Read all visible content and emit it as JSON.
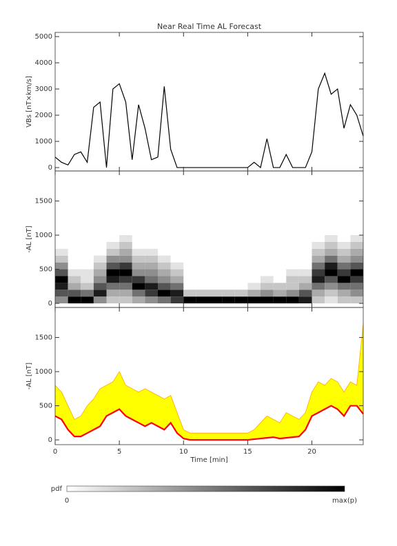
{
  "chart_data": [
    {
      "type": "line",
      "title": "Near Real Time AL Forecast",
      "ylabel": "VBs [nT×km/s]",
      "color": "#000000",
      "x": [
        0,
        0.5,
        1,
        1.5,
        2,
        2.5,
        3,
        3.5,
        4,
        4.5,
        5,
        5.5,
        6,
        6.5,
        7,
        7.5,
        8,
        8.5,
        9,
        9.5,
        10,
        10.5,
        11,
        11.5,
        12,
        12.5,
        13,
        13.5,
        14,
        14.5,
        15,
        15.5,
        16,
        16.5,
        17,
        17.5,
        18,
        18.5,
        19,
        19.5,
        20,
        20.5,
        21,
        21.5,
        22,
        22.5,
        23,
        23.5,
        24
      ],
      "values": [
        400,
        200,
        100,
        500,
        600,
        200,
        2300,
        2500,
        0,
        3000,
        3200,
        2500,
        300,
        2400,
        1500,
        300,
        400,
        3100,
        700,
        0,
        0,
        0,
        0,
        0,
        0,
        0,
        0,
        0,
        0,
        0,
        0,
        200,
        0,
        1100,
        0,
        0,
        500,
        0,
        0,
        0,
        600,
        3000,
        3600,
        2800,
        3000,
        1500,
        2400,
        2000,
        1200
      ],
      "xlim": [
        0,
        24
      ],
      "xticks": [
        0,
        5,
        10,
        15,
        20
      ],
      "ylim": [
        -130,
        5160
      ],
      "yticks": [
        0,
        1000,
        2000,
        3000,
        4000,
        5000
      ]
    },
    {
      "type": "heatmap",
      "ylabel": "-AL [nT]",
      "xbins": [
        0,
        1,
        2,
        3,
        4,
        5,
        6,
        7,
        8,
        9,
        10,
        11,
        12,
        13,
        14,
        15,
        16,
        17,
        18,
        19,
        20,
        21,
        22,
        23,
        24
      ],
      "ybins": [
        0,
        100,
        200,
        300,
        400,
        500,
        600,
        700,
        800,
        900,
        1000
      ],
      "z": [
        [
          4,
          6,
          8,
          9,
          6,
          4,
          2,
          1,
          0,
          0
        ],
        [
          9,
          6,
          3,
          2,
          1,
          0,
          0,
          0,
          0,
          0
        ],
        [
          9,
          5,
          2,
          1,
          1,
          0,
          0,
          0,
          0,
          0
        ],
        [
          4,
          8,
          6,
          4,
          3,
          2,
          1,
          0,
          0,
          0
        ],
        [
          2,
          3,
          5,
          8,
          9,
          6,
          4,
          2,
          1,
          0
        ],
        [
          2,
          3,
          5,
          7,
          9,
          7,
          4,
          3,
          2,
          1
        ],
        [
          3,
          5,
          9,
          7,
          4,
          3,
          2,
          1,
          0,
          0
        ],
        [
          4,
          7,
          8,
          5,
          4,
          3,
          2,
          1,
          0,
          0
        ],
        [
          5,
          9,
          6,
          4,
          3,
          2,
          1,
          0,
          0,
          0
        ],
        [
          7,
          8,
          5,
          3,
          2,
          1,
          0,
          0,
          0,
          0
        ],
        [
          9,
          2,
          0,
          0,
          0,
          0,
          0,
          0,
          0,
          0
        ],
        [
          9,
          2,
          0,
          0,
          0,
          0,
          0,
          0,
          0,
          0
        ],
        [
          9,
          2,
          0,
          0,
          0,
          0,
          0,
          0,
          0,
          0
        ],
        [
          9,
          2,
          0,
          0,
          0,
          0,
          0,
          0,
          0,
          0
        ],
        [
          9,
          2,
          0,
          0,
          0,
          0,
          0,
          0,
          0,
          0
        ],
        [
          9,
          3,
          1,
          0,
          0,
          0,
          0,
          0,
          0,
          0
        ],
        [
          9,
          4,
          2,
          1,
          0,
          0,
          0,
          0,
          0,
          0
        ],
        [
          9,
          3,
          2,
          0,
          0,
          0,
          0,
          0,
          0,
          0
        ],
        [
          9,
          4,
          2,
          2,
          1,
          0,
          0,
          0,
          0,
          0
        ],
        [
          8,
          6,
          3,
          2,
          1,
          0,
          0,
          0,
          0,
          0
        ],
        [
          2,
          3,
          5,
          8,
          7,
          5,
          3,
          2,
          1,
          0
        ],
        [
          1,
          2,
          4,
          6,
          9,
          8,
          5,
          3,
          2,
          1
        ],
        [
          2,
          3,
          5,
          9,
          7,
          5,
          3,
          2,
          1,
          0
        ],
        [
          2,
          4,
          5,
          7,
          9,
          6,
          4,
          3,
          2,
          1
        ]
      ],
      "xlim": [
        0,
        24
      ],
      "xticks": [
        0,
        5,
        10,
        15,
        20
      ],
      "ylim": [
        -60,
        1940
      ],
      "yticks": [
        0,
        500,
        1000,
        1500
      ]
    },
    {
      "type": "band",
      "ylabel": "-AL [nT]",
      "xlabel": "Time [min]",
      "median_color": "#ff0000",
      "band_color": "#ffff00",
      "edge_color": "#ffa500",
      "x": [
        0,
        0.5,
        1,
        1.5,
        2,
        2.5,
        3,
        3.5,
        4,
        4.5,
        5,
        5.5,
        6,
        6.5,
        7,
        7.5,
        8,
        8.5,
        9,
        9.5,
        10,
        10.5,
        11,
        11.5,
        12,
        12.5,
        13,
        13.5,
        14,
        14.5,
        15,
        15.5,
        16,
        16.5,
        17,
        17.5,
        18,
        18.5,
        19,
        19.5,
        20,
        20.5,
        21,
        21.5,
        22,
        22.5,
        23,
        23.5,
        24
      ],
      "median": [
        350,
        300,
        150,
        50,
        50,
        100,
        150,
        200,
        350,
        400,
        450,
        350,
        300,
        250,
        200,
        250,
        200,
        150,
        250,
        100,
        20,
        0,
        0,
        0,
        0,
        0,
        0,
        0,
        0,
        0,
        0,
        10,
        20,
        30,
        40,
        20,
        30,
        40,
        50,
        150,
        350,
        400,
        450,
        500,
        450,
        350,
        500,
        500,
        380
      ],
      "upper": [
        800,
        700,
        500,
        300,
        350,
        500,
        600,
        750,
        800,
        850,
        1000,
        800,
        750,
        700,
        750,
        700,
        650,
        600,
        650,
        400,
        150,
        100,
        100,
        100,
        100,
        100,
        100,
        100,
        100,
        100,
        100,
        150,
        250,
        350,
        300,
        250,
        400,
        350,
        300,
        400,
        700,
        850,
        800,
        900,
        850,
        700,
        850,
        800,
        1700
      ],
      "xlim": [
        0,
        24
      ],
      "xticks": [
        0,
        5,
        10,
        15,
        20
      ],
      "ylim": [
        -70,
        1940
      ],
      "yticks": [
        0,
        500,
        1000,
        1500
      ]
    }
  ],
  "colorbar": {
    "label": "pdf",
    "min_label": "0",
    "max_label": "max(p)"
  }
}
